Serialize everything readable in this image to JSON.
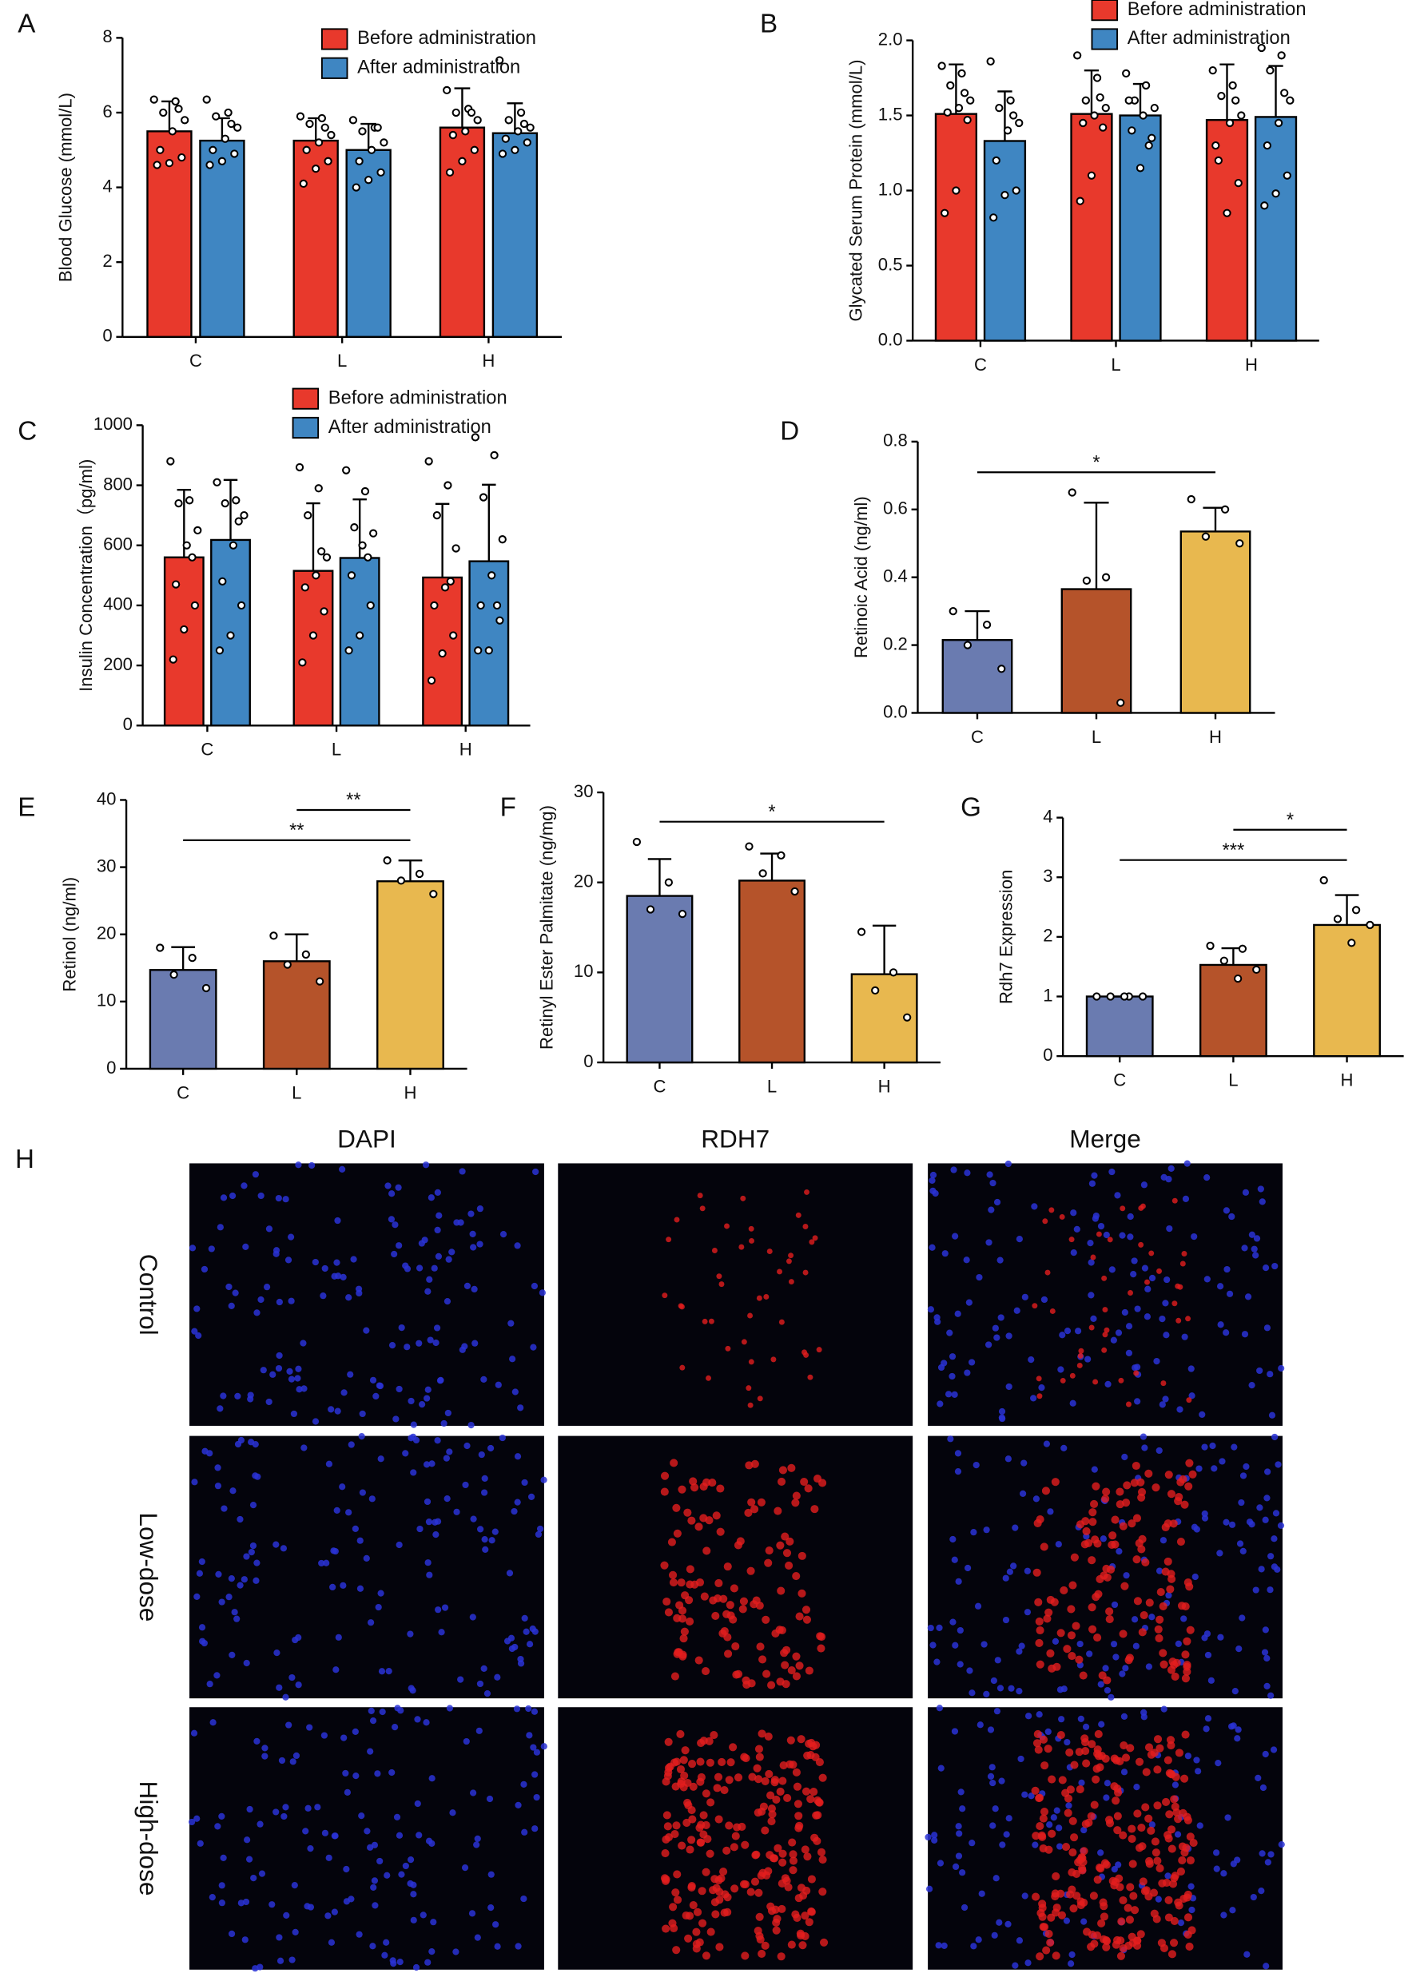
{
  "chart_data": [
    {
      "type": "bar",
      "panel": "A",
      "ylabel": "Blood Glucose (mmol/L)",
      "categories": [
        "C",
        "L",
        "H"
      ],
      "series": [
        {
          "name": "Before administration",
          "color": "#e8392c",
          "values": [
            5.5,
            5.25,
            5.6
          ],
          "errors": [
            0.8,
            0.6,
            1.05
          ],
          "points": [
            [
              6.35,
              6.3,
              6.0,
              5.8,
              5.5,
              5.0,
              4.8,
              4.65,
              4.6,
              6.1
            ],
            [
              5.9,
              5.85,
              5.7,
              5.4,
              5.2,
              5.0,
              4.7,
              4.5,
              4.1,
              5.6
            ],
            [
              6.6,
              6.1,
              6.0,
              5.8,
              5.5,
              5.4,
              5.0,
              4.7,
              4.4,
              6.0
            ]
          ]
        },
        {
          "name": "After administration",
          "color": "#3f86c2",
          "values": [
            5.25,
            5.0,
            5.45
          ],
          "errors": [
            0.6,
            0.7,
            0.8
          ],
          "points": [
            [
              6.35,
              6.0,
              5.9,
              5.6,
              5.3,
              5.0,
              4.9,
              4.7,
              4.6,
              5.7
            ],
            [
              5.8,
              5.6,
              5.5,
              5.2,
              5.0,
              4.7,
              4.4,
              4.2,
              4.0,
              5.6
            ],
            [
              7.4,
              6.0,
              5.8,
              5.6,
              5.5,
              5.3,
              5.2,
              5.0,
              4.9,
              5.7
            ]
          ]
        }
      ],
      "ylim": [
        0,
        8
      ],
      "yticks": [
        0,
        2,
        4,
        6,
        8
      ],
      "legend": "top-right"
    },
    {
      "type": "bar",
      "panel": "B",
      "ylabel": "Glycated Serum Protein (mmol/L)",
      "categories": [
        "C",
        "L",
        "H"
      ],
      "series": [
        {
          "name": "Before administration",
          "color": "#e8392c",
          "values": [
            1.51,
            1.51,
            1.47
          ],
          "errors": [
            0.33,
            0.29,
            0.37
          ],
          "points": [
            [
              1.83,
              1.78,
              1.7,
              1.6,
              1.55,
              1.52,
              1.47,
              1.0,
              0.85,
              1.65
            ],
            [
              1.9,
              1.75,
              1.6,
              1.55,
              1.5,
              1.45,
              1.42,
              1.1,
              0.93,
              1.62
            ],
            [
              1.8,
              1.7,
              1.63,
              1.5,
              1.45,
              1.2,
              1.05,
              0.85,
              1.3,
              1.6
            ]
          ]
        },
        {
          "name": "After administration",
          "color": "#3f86c2",
          "values": [
            1.33,
            1.5,
            1.49
          ],
          "errors": [
            0.33,
            0.21,
            0.34
          ],
          "points": [
            [
              1.86,
              1.6,
              1.55,
              1.45,
              1.4,
              1.2,
              1.0,
              0.97,
              0.82,
              1.5
            ],
            [
              1.78,
              1.7,
              1.6,
              1.55,
              1.5,
              1.4,
              1.35,
              1.15,
              1.6,
              1.3
            ],
            [
              1.95,
              1.9,
              1.8,
              1.6,
              1.45,
              1.3,
              1.1,
              0.98,
              0.9,
              1.65
            ]
          ]
        }
      ],
      "ylim": [
        0,
        2
      ],
      "yticks": [
        {
          "value": 0,
          "label": "0.0"
        },
        0.5,
        {
          "value": 1,
          "label": "1.0"
        },
        1.5,
        {
          "value": 2,
          "label": "2.0"
        }
      ],
      "legend": "top-right"
    },
    {
      "type": "bar",
      "panel": "C",
      "ylabel": "Insulin Concentration（pg/ml)",
      "categories": [
        "C",
        "L",
        "H"
      ],
      "series": [
        {
          "name": "Before administration",
          "color": "#e8392c",
          "values": [
            560,
            515,
            493
          ],
          "errors": [
            225,
            225,
            245
          ],
          "points": [
            [
              880,
              750,
              740,
              650,
              600,
              470,
              400,
              320,
              220,
              560
            ],
            [
              860,
              790,
              700,
              560,
              500,
              460,
              380,
              300,
              210,
              580
            ],
            [
              880,
              800,
              700,
              590,
              460,
              400,
              300,
              240,
              150,
              480
            ]
          ]
        },
        {
          "name": "After administration",
          "color": "#3f86c2",
          "values": [
            618,
            558,
            547
          ],
          "errors": [
            200,
            195,
            255
          ],
          "points": [
            [
              810,
              750,
              740,
              700,
              600,
              480,
              400,
              300,
              250,
              680
            ],
            [
              850,
              780,
              660,
              640,
              600,
              500,
              400,
              300,
              250,
              560
            ],
            [
              960,
              900,
              760,
              620,
              500,
              400,
              350,
              250,
              250,
              400
            ]
          ]
        }
      ],
      "ylim": [
        0,
        1000
      ],
      "yticks": [
        0,
        200,
        400,
        600,
        800,
        1000
      ],
      "legend": "top-right"
    },
    {
      "type": "bar",
      "panel": "D",
      "ylabel": "Retinoic Acid (ng/ml)",
      "categories": [
        "C",
        "L",
        "H"
      ],
      "values": [
        0.215,
        0.365,
        0.535
      ],
      "errors": [
        0.085,
        0.255,
        0.07
      ],
      "colors": [
        "#6a7bb0",
        "#b5532a",
        "#e8b84f"
      ],
      "points": [
        [
          0.3,
          0.26,
          0.2,
          0.13
        ],
        [
          0.65,
          0.4,
          0.39,
          0.03
        ],
        [
          0.63,
          0.6,
          0.52,
          0.5
        ]
      ],
      "ylim": [
        0,
        0.8
      ],
      "yticks": [
        {
          "value": 0,
          "label": "0.0"
        },
        0.2,
        0.4,
        0.6,
        0.8
      ],
      "annotations": [
        {
          "text": "*",
          "from": "C",
          "to": "H"
        }
      ]
    },
    {
      "type": "bar",
      "panel": "E",
      "ylabel": "Retinol (ng/ml)",
      "categories": [
        "C",
        "L",
        "H"
      ],
      "values": [
        14.7,
        16.0,
        27.9
      ],
      "errors": [
        3.4,
        4.0,
        3.1
      ],
      "colors": [
        "#6a7bb0",
        "#b5532a",
        "#e8b84f"
      ],
      "points": [
        [
          18,
          16.5,
          14,
          12
        ],
        [
          19.8,
          17,
          15.5,
          13
        ],
        [
          31,
          29,
          28,
          26
        ]
      ],
      "ylim": [
        0,
        40
      ],
      "yticks": [
        0,
        10,
        20,
        30,
        40
      ],
      "annotations": [
        {
          "text": "**",
          "from": "C",
          "to": "H"
        },
        {
          "text": "**",
          "from": "L",
          "to": "H"
        }
      ]
    },
    {
      "type": "bar",
      "panel": "F",
      "ylabel": "Retinyl Ester Palmitate (ng/mg)",
      "categories": [
        "C",
        "L",
        "H"
      ],
      "values": [
        18.5,
        20.2,
        9.8
      ],
      "errors": [
        4.1,
        3.0,
        5.4
      ],
      "colors": [
        "#6a7bb0",
        "#b5532a",
        "#e8b84f"
      ],
      "points": [
        [
          24.5,
          20,
          17,
          16.5
        ],
        [
          24,
          23,
          21,
          19
        ],
        [
          14.5,
          10,
          8,
          5
        ]
      ],
      "ylim": [
        0,
        30
      ],
      "yticks": [
        0,
        10,
        20,
        30
      ],
      "annotations": [
        {
          "text": "*",
          "from": "C",
          "to": "H"
        }
      ]
    },
    {
      "type": "bar",
      "panel": "G",
      "ylabel": "Rdh7 Expression",
      "categories": [
        "C",
        "L",
        "H"
      ],
      "values": [
        1.0,
        1.53,
        2.2
      ],
      "errors": [
        0,
        0.28,
        0.5
      ],
      "colors": [
        "#6a7bb0",
        "#b5532a",
        "#e8b84f"
      ],
      "points": [
        [
          1,
          1,
          1,
          1,
          1
        ],
        [
          1.85,
          1.8,
          1.6,
          1.45,
          1.3
        ],
        [
          2.95,
          2.45,
          2.3,
          2.2,
          1.9
        ]
      ],
      "ylim": [
        0,
        4
      ],
      "yticks": [
        0,
        1,
        2,
        3,
        4
      ],
      "annotations": [
        {
          "text": "***",
          "from": "C",
          "to": "H"
        },
        {
          "text": "*",
          "from": "L",
          "to": "H"
        }
      ]
    }
  ],
  "microscopy": {
    "panel": "H",
    "columns": [
      "DAPI",
      "RDH7",
      "Merge"
    ],
    "rows": [
      "Control",
      "Low-dose",
      "High-dose"
    ]
  }
}
